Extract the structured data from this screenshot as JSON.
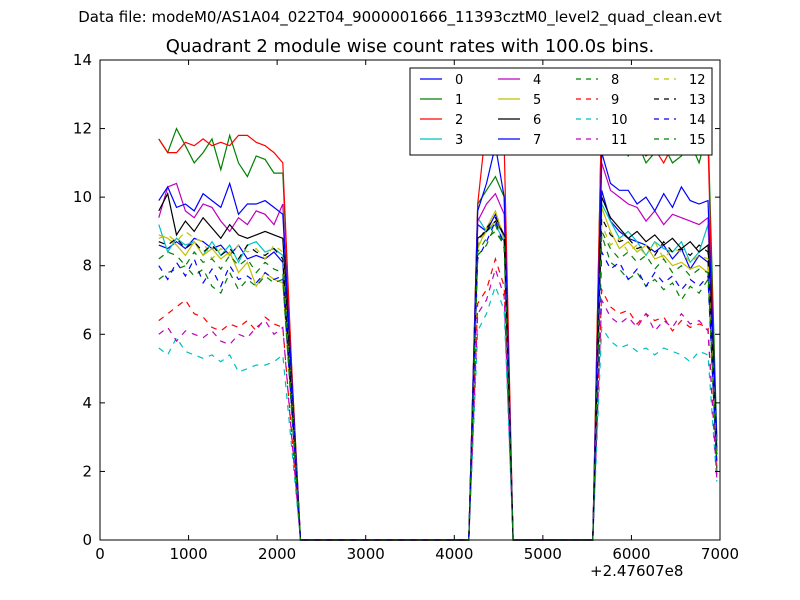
{
  "suptitle": "Data file: modeM0/AS1A04_022T04_9000001666_11393cztM0_level2_quad_clean.evt",
  "chart_data": {
    "type": "line",
    "title": "Quadrant 2 module wise count rates with 100.0s bins.",
    "xlabel": "",
    "ylabel": "",
    "x_offset_label": "+2.47607e8",
    "xlim": [
      0,
      7000
    ],
    "ylim": [
      0,
      14
    ],
    "xticks": [
      0,
      1000,
      2000,
      3000,
      4000,
      5000,
      6000,
      7000
    ],
    "yticks": [
      0,
      2,
      4,
      6,
      8,
      10,
      12,
      14
    ],
    "grid": false,
    "legend_position": "top-right",
    "x": [
      664,
      764,
      864,
      964,
      1064,
      1164,
      1264,
      1364,
      1464,
      1564,
      1664,
      1764,
      1864,
      1964,
      2064,
      2164,
      2264,
      2364,
      2464,
      2564,
      2664,
      2764,
      2864,
      2964,
      3064,
      3164,
      3264,
      3364,
      3464,
      3564,
      3664,
      3764,
      3864,
      3964,
      4064,
      4164,
      4264,
      4364,
      4464,
      4564,
      4664,
      4764,
      4864,
      4964,
      5064,
      5164,
      5264,
      5364,
      5464,
      5564,
      5664,
      5764,
      5864,
      5964,
      6064,
      6164,
      6264,
      6364,
      6464,
      6564,
      6664,
      6764,
      6864,
      6964
    ],
    "series": [
      {
        "name": "0",
        "color": "#0000ff",
        "dash": "solid",
        "values": [
          8.6,
          8.5,
          8.7,
          8.5,
          8.8,
          8.7,
          8.5,
          8.6,
          8.3,
          8.6,
          8.2,
          8.3,
          8.2,
          8.4,
          8.1,
          4.0,
          0,
          0,
          0,
          0,
          0,
          0,
          0,
          0,
          0,
          0,
          0,
          0,
          0,
          0,
          0,
          0,
          0,
          0,
          0,
          0,
          9.2,
          9.0,
          9.5,
          8.8,
          0,
          0,
          0,
          0,
          0,
          0,
          0,
          0,
          0,
          0,
          10.2,
          9.3,
          9.0,
          8.8,
          8.7,
          8.6,
          8.4,
          8.6,
          8.2,
          8.5,
          7.9,
          8.3,
          8.1,
          2.3
        ]
      },
      {
        "name": "1",
        "color": "#008000",
        "dash": "solid",
        "values": [
          11.7,
          11.3,
          12.0,
          11.5,
          11.0,
          11.3,
          11.7,
          10.8,
          11.8,
          11.0,
          10.6,
          11.2,
          11.1,
          10.7,
          10.7,
          5.0,
          0,
          0,
          0,
          0,
          0,
          0,
          0,
          0,
          0,
          0,
          0,
          0,
          0,
          0,
          0,
          0,
          0,
          0,
          0,
          0,
          9.8,
          10.2,
          10.6,
          10.0,
          0,
          0,
          0,
          0,
          0,
          0,
          0,
          0,
          0,
          0,
          12.6,
          11.8,
          11.6,
          11.2,
          11.6,
          11.0,
          11.3,
          11.5,
          11.0,
          11.2,
          11.6,
          11.0,
          12.0,
          3.0
        ]
      },
      {
        "name": "2",
        "color": "#ff0000",
        "dash": "solid",
        "values": [
          11.7,
          11.3,
          11.3,
          11.6,
          11.5,
          11.7,
          11.5,
          11.6,
          11.5,
          11.8,
          11.8,
          11.6,
          11.5,
          11.3,
          11.0,
          5.0,
          0,
          0,
          0,
          0,
          0,
          0,
          0,
          0,
          0,
          0,
          0,
          0,
          0,
          0,
          0,
          0,
          0,
          0,
          0,
          0,
          9.8,
          12.2,
          12.4,
          11.5,
          0,
          0,
          0,
          0,
          0,
          0,
          0,
          0,
          0,
          0,
          12.6,
          12.0,
          11.9,
          11.7,
          11.6,
          11.2,
          11.4,
          11.0,
          11.5,
          11.3,
          11.6,
          11.3,
          11.6,
          2.0
        ]
      },
      {
        "name": "3",
        "color": "#00bfbf",
        "dash": "solid",
        "values": [
          9.2,
          8.4,
          8.8,
          8.6,
          8.7,
          8.3,
          8.7,
          8.3,
          8.6,
          8.1,
          8.6,
          8.7,
          8.4,
          8.5,
          8.3,
          4.0,
          0,
          0,
          0,
          0,
          0,
          0,
          0,
          0,
          0,
          0,
          0,
          0,
          0,
          0,
          0,
          0,
          0,
          0,
          0,
          0,
          9.4,
          9.0,
          9.2,
          8.7,
          0,
          0,
          0,
          0,
          0,
          0,
          0,
          0,
          0,
          0,
          9.8,
          9.3,
          8.8,
          9.0,
          8.7,
          8.3,
          8.7,
          8.5,
          8.4,
          8.7,
          8.1,
          8.4,
          9.2,
          2.5
        ]
      },
      {
        "name": "4",
        "color": "#bf00bf",
        "dash": "solid",
        "values": [
          9.4,
          10.3,
          10.4,
          9.6,
          9.4,
          9.8,
          9.7,
          9.3,
          9.0,
          9.4,
          9.2,
          9.6,
          9.5,
          9.2,
          9.8,
          4.6,
          0,
          0,
          0,
          0,
          0,
          0,
          0,
          0,
          0,
          0,
          0,
          0,
          0,
          0,
          0,
          0,
          0,
          0,
          0,
          0,
          9.3,
          9.8,
          10.1,
          9.5,
          0,
          0,
          0,
          0,
          0,
          0,
          0,
          0,
          0,
          0,
          11.0,
          10.2,
          10.0,
          9.8,
          9.7,
          9.3,
          9.6,
          9.2,
          9.5,
          9.4,
          9.3,
          9.2,
          9.4,
          2.7
        ]
      },
      {
        "name": "5",
        "color": "#bfbf00",
        "dash": "solid",
        "values": [
          8.9,
          8.8,
          8.6,
          8.3,
          8.7,
          8.3,
          8.5,
          8.2,
          8.4,
          7.8,
          8.1,
          7.4,
          7.8,
          7.6,
          7.5,
          3.8,
          0,
          0,
          0,
          0,
          0,
          0,
          0,
          0,
          0,
          0,
          0,
          0,
          0,
          0,
          0,
          0,
          0,
          0,
          0,
          0,
          8.5,
          9.1,
          9.6,
          8.8,
          0,
          0,
          0,
          0,
          0,
          0,
          0,
          0,
          0,
          0,
          9.7,
          9.0,
          8.5,
          8.7,
          8.4,
          8.6,
          8.2,
          8.3,
          8.0,
          8.1,
          7.9,
          8.0,
          7.8,
          2.2
        ]
      },
      {
        "name": "6",
        "color": "#000000",
        "dash": "solid",
        "values": [
          9.6,
          10.1,
          8.9,
          9.3,
          9.0,
          9.4,
          9.1,
          8.8,
          9.2,
          8.9,
          8.8,
          8.9,
          9.0,
          8.9,
          8.8,
          4.4,
          0,
          0,
          0,
          0,
          0,
          0,
          0,
          0,
          0,
          0,
          0,
          0,
          0,
          0,
          0,
          0,
          0,
          0,
          0,
          0,
          8.8,
          9.0,
          9.3,
          8.9,
          0,
          0,
          0,
          0,
          0,
          0,
          0,
          0,
          0,
          0,
          10.0,
          9.4,
          9.1,
          8.8,
          9.0,
          8.7,
          8.9,
          8.6,
          8.8,
          8.5,
          8.7,
          8.4,
          8.6,
          2.6
        ]
      },
      {
        "name": "7",
        "color": "#0000ff",
        "dash": "solid",
        "values": [
          9.9,
          10.3,
          9.7,
          9.8,
          9.6,
          10.1,
          9.9,
          9.7,
          10.4,
          9.5,
          9.8,
          9.8,
          9.9,
          9.7,
          9.5,
          4.7,
          0,
          0,
          0,
          0,
          0,
          0,
          0,
          0,
          0,
          0,
          0,
          0,
          0,
          0,
          0,
          0,
          0,
          0,
          0,
          0,
          9.6,
          10.4,
          11.5,
          10.0,
          0,
          0,
          0,
          0,
          0,
          0,
          0,
          0,
          0,
          0,
          11.3,
          10.4,
          10.2,
          10.2,
          9.8,
          10.0,
          9.6,
          10.1,
          9.7,
          10.3,
          9.9,
          9.8,
          9.9,
          2.9
        ]
      },
      {
        "name": "8",
        "color": "#008000",
        "dash": "dashed",
        "values": [
          7.6,
          7.8,
          7.9,
          8.0,
          7.7,
          7.9,
          7.4,
          7.2,
          7.8,
          7.3,
          7.6,
          7.4,
          7.7,
          7.5,
          7.6,
          3.7,
          0,
          0,
          0,
          0,
          0,
          0,
          0,
          0,
          0,
          0,
          0,
          0,
          0,
          0,
          0,
          0,
          0,
          0,
          0,
          0,
          8.3,
          8.6,
          9.2,
          8.5,
          0,
          0,
          0,
          0,
          0,
          0,
          0,
          0,
          0,
          0,
          8.9,
          8.1,
          7.9,
          7.6,
          7.8,
          7.4,
          7.6,
          7.3,
          7.5,
          7.0,
          7.4,
          7.2,
          7.6,
          2.1
        ]
      },
      {
        "name": "9",
        "color": "#ff0000",
        "dash": "dashed",
        "values": [
          6.4,
          6.6,
          6.8,
          7.0,
          6.6,
          6.5,
          6.2,
          6.1,
          6.3,
          6.2,
          6.4,
          6.1,
          6.5,
          6.3,
          6.2,
          3.1,
          0,
          0,
          0,
          0,
          0,
          0,
          0,
          0,
          0,
          0,
          0,
          0,
          0,
          0,
          0,
          0,
          0,
          0,
          0,
          0,
          6.9,
          7.3,
          8.2,
          7.4,
          0,
          0,
          0,
          0,
          0,
          0,
          0,
          0,
          0,
          0,
          7.3,
          6.8,
          6.6,
          6.7,
          6.3,
          6.6,
          6.4,
          6.5,
          6.1,
          6.4,
          6.2,
          6.3,
          6.2,
          1.9
        ]
      },
      {
        "name": "10",
        "color": "#00bfbf",
        "dash": "dashed",
        "values": [
          5.6,
          5.4,
          5.9,
          5.5,
          5.4,
          5.3,
          5.4,
          5.2,
          5.4,
          4.9,
          5.0,
          5.1,
          5.1,
          5.2,
          5.4,
          2.7,
          0,
          0,
          0,
          0,
          0,
          0,
          0,
          0,
          0,
          0,
          0,
          0,
          0,
          0,
          0,
          0,
          0,
          0,
          0,
          0,
          6.1,
          6.6,
          7.4,
          6.7,
          0,
          0,
          0,
          0,
          0,
          0,
          0,
          0,
          0,
          0,
          6.2,
          5.8,
          5.6,
          5.7,
          5.5,
          5.6,
          5.4,
          5.6,
          5.5,
          5.4,
          5.2,
          5.5,
          5.4,
          1.7
        ]
      },
      {
        "name": "11",
        "color": "#bf00bf",
        "dash": "dashed",
        "values": [
          6.0,
          6.2,
          5.8,
          6.1,
          6.0,
          5.9,
          6.1,
          5.8,
          5.7,
          6.0,
          5.9,
          6.2,
          6.4,
          6.0,
          6.2,
          3.0,
          0,
          0,
          0,
          0,
          0,
          0,
          0,
          0,
          0,
          0,
          0,
          0,
          0,
          0,
          0,
          0,
          0,
          0,
          0,
          0,
          6.6,
          7.0,
          7.9,
          7.1,
          0,
          0,
          0,
          0,
          0,
          0,
          0,
          0,
          0,
          0,
          7.0,
          6.5,
          6.3,
          6.5,
          6.2,
          6.6,
          6.1,
          6.4,
          6.2,
          6.6,
          6.3,
          6.4,
          6.1,
          1.8
        ]
      },
      {
        "name": "12",
        "color": "#bfbf00",
        "dash": "dashed",
        "values": [
          8.8,
          8.9,
          8.7,
          9.0,
          8.8,
          8.7,
          8.2,
          8.5,
          8.3,
          8.6,
          8.4,
          8.5,
          8.2,
          8.6,
          8.4,
          4.2,
          0,
          0,
          0,
          0,
          0,
          0,
          0,
          0,
          0,
          0,
          0,
          0,
          0,
          0,
          0,
          0,
          0,
          0,
          0,
          0,
          8.6,
          9.0,
          9.3,
          8.8,
          0,
          0,
          0,
          0,
          0,
          0,
          0,
          0,
          0,
          0,
          9.2,
          8.6,
          8.8,
          8.4,
          8.6,
          8.3,
          8.7,
          8.2,
          8.5,
          8.4,
          8.1,
          8.3,
          8.2,
          2.4
        ]
      },
      {
        "name": "13",
        "color": "#000000",
        "dash": "dashed",
        "values": [
          8.7,
          8.6,
          8.8,
          8.5,
          8.7,
          8.4,
          8.6,
          8.3,
          8.5,
          8.2,
          8.6,
          8.4,
          8.3,
          8.5,
          8.2,
          4.1,
          0,
          0,
          0,
          0,
          0,
          0,
          0,
          0,
          0,
          0,
          0,
          0,
          0,
          0,
          0,
          0,
          0,
          0,
          0,
          0,
          8.7,
          9.1,
          9.4,
          8.9,
          0,
          0,
          0,
          0,
          0,
          0,
          0,
          0,
          0,
          0,
          9.4,
          8.9,
          8.7,
          8.8,
          8.5,
          8.6,
          8.3,
          8.7,
          8.4,
          8.5,
          8.3,
          8.6,
          8.4,
          2.5
        ]
      },
      {
        "name": "14",
        "color": "#0000ff",
        "dash": "dashed",
        "values": [
          8.0,
          7.6,
          8.1,
          7.7,
          8.2,
          7.5,
          7.9,
          7.4,
          8.0,
          7.6,
          7.7,
          7.5,
          7.8,
          7.6,
          7.7,
          3.8,
          0,
          0,
          0,
          0,
          0,
          0,
          0,
          0,
          0,
          0,
          0,
          0,
          0,
          0,
          0,
          0,
          0,
          0,
          0,
          0,
          8.2,
          8.7,
          9.3,
          8.6,
          0,
          0,
          0,
          0,
          0,
          0,
          0,
          0,
          0,
          0,
          8.4,
          7.9,
          8.1,
          7.6,
          7.9,
          7.4,
          7.8,
          7.5,
          7.7,
          7.3,
          7.6,
          7.4,
          7.7,
          2.2
        ]
      },
      {
        "name": "15",
        "color": "#008000",
        "dash": "dashed",
        "values": [
          8.2,
          8.4,
          8.3,
          8.0,
          8.4,
          8.1,
          8.2,
          7.9,
          8.3,
          8.0,
          8.2,
          7.8,
          8.1,
          7.9,
          7.8,
          3.9,
          0,
          0,
          0,
          0,
          0,
          0,
          0,
          0,
          0,
          0,
          0,
          0,
          0,
          0,
          0,
          0,
          0,
          0,
          0,
          0,
          8.4,
          8.8,
          9.0,
          8.6,
          0,
          0,
          0,
          0,
          0,
          0,
          0,
          0,
          0,
          0,
          9.0,
          8.5,
          8.2,
          8.4,
          8.1,
          8.3,
          7.9,
          8.2,
          7.8,
          8.0,
          7.7,
          7.9,
          7.8,
          2.3
        ]
      }
    ]
  }
}
